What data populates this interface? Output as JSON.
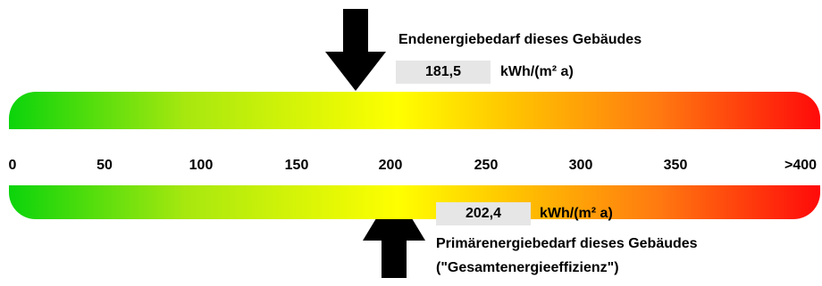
{
  "scale": {
    "labels": [
      "0",
      "50",
      "100",
      "150",
      "200",
      "250",
      "300",
      "350",
      ">400"
    ],
    "gradient": [
      "#0bd40b",
      "#a8e80f",
      "#ffff00",
      "#ffc400",
      "#ff7a10",
      "#ff0a0a"
    ]
  },
  "end_energy": {
    "caption": "Endenergiebedarf dieses Gebäudes",
    "value": "181,5",
    "unit": "kWh/(m² a)"
  },
  "primary_energy": {
    "caption_line1": "Primärenergiebedarf dieses Gebäudes",
    "caption_line2": "(\"Gesamtenergieeffizienz\")",
    "value": "202,4",
    "unit": "kWh/(m² a)"
  },
  "colors": {
    "arrow": "#000000",
    "value_box": "#e6e6e6"
  }
}
